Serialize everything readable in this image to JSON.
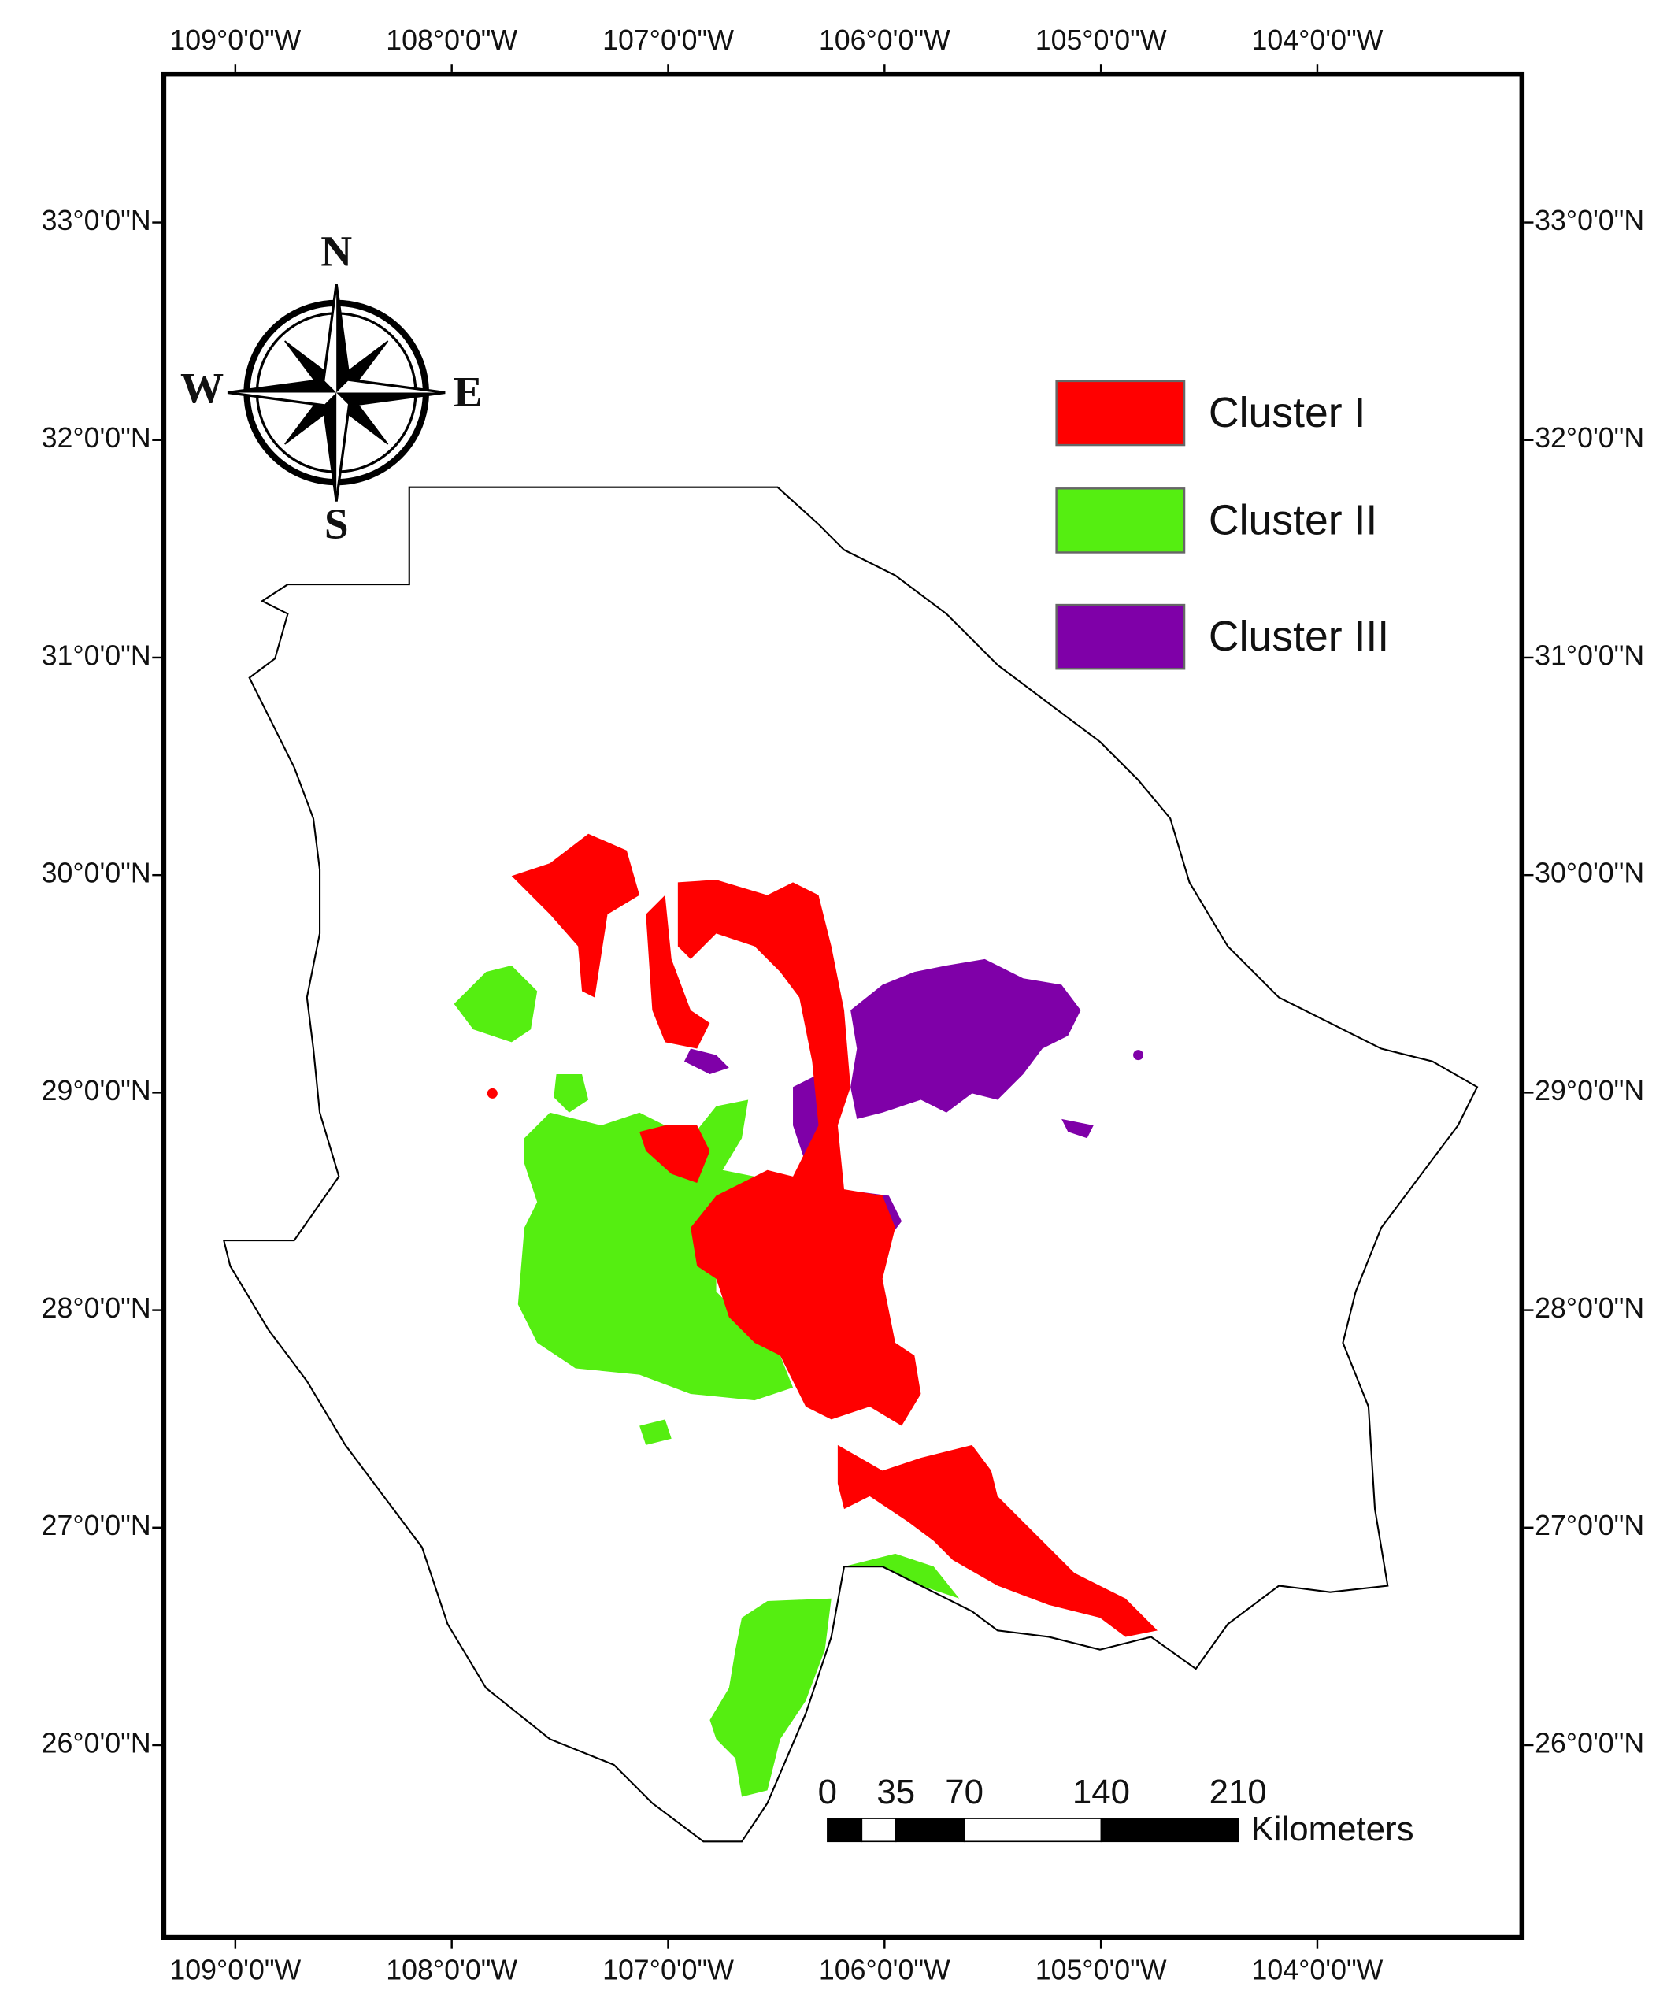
{
  "map": {
    "longitude_labels": [
      "109°0'0\"W",
      "108°0'0\"W",
      "107°0'0\"W",
      "106°0'0\"W",
      "105°0'0\"W",
      "104°0'0\"W"
    ],
    "latitude_labels": [
      "33°0'0\"N",
      "32°0'0\"N",
      "31°0'0\"N",
      "30°0'0\"N",
      "29°0'0\"N",
      "28°0'0\"N",
      "27°0'0\"N",
      "26°0'0\"N"
    ],
    "compass": {
      "north": "N",
      "south": "S",
      "east": "E",
      "west": "W"
    },
    "legend": [
      {
        "label": "Cluster I",
        "color": "#ff0000"
      },
      {
        "label": "Cluster II",
        "color": "#55ee11"
      },
      {
        "label": "Cluster III",
        "color": "#7f00a8"
      }
    ],
    "scale_bar": {
      "ticks": [
        0,
        35,
        70,
        140,
        210
      ],
      "unit": "Kilometers"
    }
  }
}
